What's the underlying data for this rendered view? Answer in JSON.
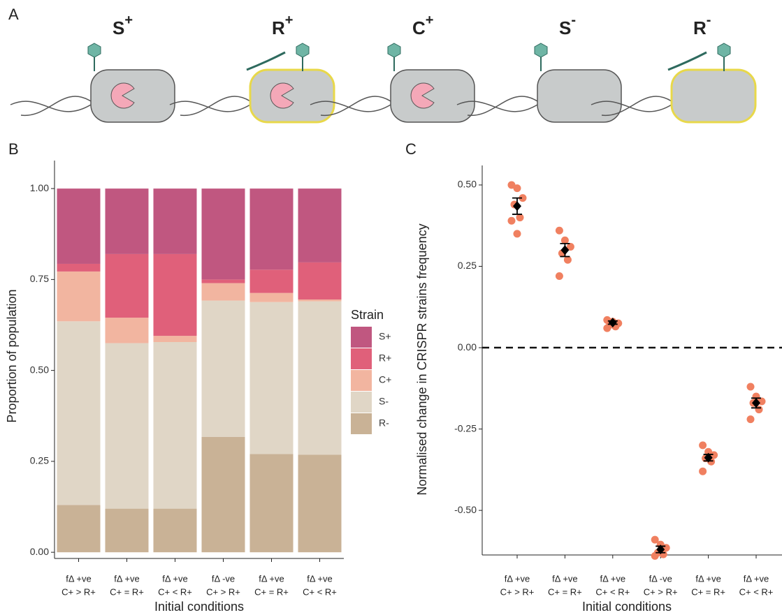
{
  "panels": [
    "A",
    "B",
    "C"
  ],
  "strains": [
    {
      "base": "S",
      "sup": "+"
    },
    {
      "base": "R",
      "sup": "+"
    },
    {
      "base": "C",
      "sup": "+"
    },
    {
      "base": "S",
      "sup": "-"
    },
    {
      "base": "R",
      "sup": "-"
    }
  ],
  "chart_data": [
    {
      "type": "bar",
      "stacked": true,
      "categories": [
        [
          "fΔ +ve",
          "C+ > R+"
        ],
        [
          "fΔ +ve",
          "C+ = R+"
        ],
        [
          "fΔ +ve",
          "C+ < R+"
        ],
        [
          "fΔ -ve",
          "C+ > R+"
        ],
        [
          "fΔ +ve",
          "C+ = R+"
        ],
        [
          "fΔ +ve",
          "C+ < R+"
        ]
      ],
      "series": [
        {
          "name": "S+",
          "color": "#c05780",
          "values": [
            0.207,
            0.18,
            0.18,
            0.25,
            0.223,
            0.203
          ]
        },
        {
          "name": "R+",
          "color": "#e0607a",
          "values": [
            0.021,
            0.175,
            0.225,
            0.01,
            0.064,
            0.102
          ]
        },
        {
          "name": "C+",
          "color": "#f2b5a0",
          "values": [
            0.137,
            0.07,
            0.017,
            0.048,
            0.025,
            0.005
          ]
        },
        {
          "name": "S-",
          "color": "#e0d6c6",
          "values": [
            0.505,
            0.455,
            0.458,
            0.375,
            0.418,
            0.422
          ]
        },
        {
          "name": "R-",
          "color": "#c9b296",
          "values": [
            0.13,
            0.12,
            0.12,
            0.317,
            0.27,
            0.268
          ]
        }
      ],
      "legend_title": "Strain",
      "x_label": "Initial conditions",
      "y_label": "Proportion of population",
      "ylim": [
        -0.017,
        1.077
      ],
      "yticks": [
        {
          "value": 0,
          "label": "0.00"
        },
        {
          "value": 0.25,
          "label": "0.25"
        },
        {
          "value": 0.5,
          "label": "0.50"
        },
        {
          "value": 0.75,
          "label": "0.75"
        },
        {
          "value": 1,
          "label": "1.00"
        }
      ]
    },
    {
      "type": "scatter",
      "categories": [
        [
          "fΔ +ve",
          "C+ > R+"
        ],
        [
          "fΔ +ve",
          "C+ = R+"
        ],
        [
          "fΔ +ve",
          "C+ < R+"
        ],
        [
          "fΔ -ve",
          "C+ > R+"
        ],
        [
          "fΔ +ve",
          "C+ = R+"
        ],
        [
          "fΔ +ve",
          "C+ < R+"
        ]
      ],
      "points": [
        [
          0.5,
          0.49,
          0.46,
          0.44,
          0.4,
          0.39,
          0.35
        ],
        [
          0.36,
          0.33,
          0.31,
          0.29,
          0.27,
          0.22
        ],
        [
          0.085,
          0.08,
          0.075,
          0.07,
          0.065,
          0.06
        ],
        [
          -0.59,
          -0.605,
          -0.615,
          -0.63,
          -0.635,
          -0.64
        ],
        [
          -0.3,
          -0.32,
          -0.33,
          -0.34,
          -0.35,
          -0.38
        ],
        [
          -0.12,
          -0.15,
          -0.165,
          -0.17,
          -0.19,
          -0.22
        ]
      ],
      "means": [
        0.435,
        0.3,
        0.077,
        -0.62,
        -0.338,
        -0.17
      ],
      "errors": [
        0.025,
        0.02,
        0.005,
        0.01,
        0.01,
        0.015
      ],
      "point_color": "#f08060",
      "mean_color": "#000000",
      "hline": 0,
      "x_label": "Initial conditions",
      "y_label": "Normalised change in CRISPR strains frequency",
      "ylim": [
        -0.637,
        0.56
      ],
      "yticks": [
        {
          "value": -0.5,
          "label": "-0.50"
        },
        {
          "value": -0.25,
          "label": "-0.25"
        },
        {
          "value": 0,
          "label": "0.00"
        },
        {
          "value": 0.25,
          "label": "0.25"
        },
        {
          "value": 0.5,
          "label": "0.50"
        }
      ]
    }
  ]
}
